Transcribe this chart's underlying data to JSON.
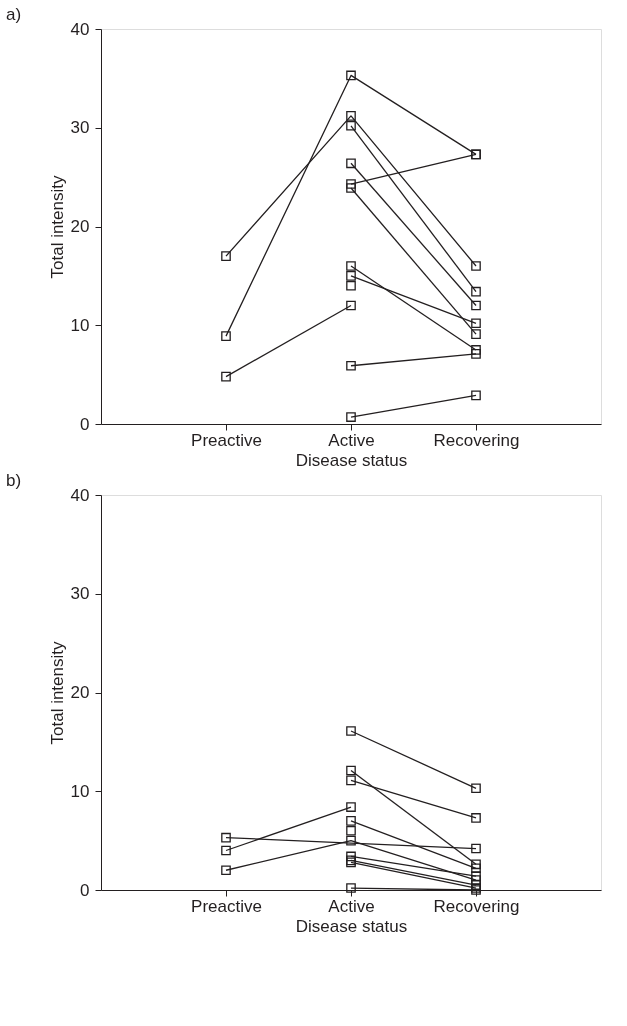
{
  "chart_data": [
    {
      "type": "line",
      "title": "a)",
      "xlabel": "Disease status",
      "ylabel": "Total intensity",
      "categories": [
        "Preactive",
        "Active",
        "Recovering"
      ],
      "ylim": [
        0,
        40
      ],
      "yticks": [
        0,
        10,
        20,
        30,
        40
      ],
      "grid": false,
      "legend": false,
      "marker": "square",
      "line_style": "solid",
      "series": [
        {
          "color": "#231f20",
          "values": [
            17.0,
            31.2,
            16.0
          ]
        },
        {
          "color": "#231f20",
          "values": [
            8.9,
            35.3,
            27.3
          ]
        },
        {
          "color": "#231f20",
          "values": [
            4.8,
            12.0,
            null
          ]
        },
        {
          "color": "#231f20",
          "values": [
            null,
            30.2,
            13.4
          ]
        },
        {
          "color": "#231f20",
          "values": [
            null,
            26.4,
            12.0
          ]
        },
        {
          "color": "#231f20",
          "values": [
            null,
            24.3,
            27.3
          ]
        },
        {
          "color": "#231f20",
          "values": [
            null,
            23.9,
            9.1
          ]
        },
        {
          "color": "#231f20",
          "values": [
            null,
            16.0,
            7.5
          ]
        },
        {
          "color": "#231f20",
          "values": [
            null,
            15.0,
            10.2
          ]
        },
        {
          "color": "#231f20",
          "values": [
            null,
            14.0,
            null
          ]
        },
        {
          "color": "#231f20",
          "values": [
            null,
            5.9,
            7.1
          ]
        },
        {
          "color": "#231f20",
          "values": [
            null,
            0.7,
            2.9
          ]
        }
      ]
    },
    {
      "type": "line",
      "title": "b)",
      "xlabel": "Disease status",
      "ylabel": "Total intensity",
      "categories": [
        "Preactive",
        "Active",
        "Recovering"
      ],
      "ylim": [
        0,
        40
      ],
      "yticks": [
        0,
        10,
        20,
        30,
        40
      ],
      "grid": false,
      "legend": false,
      "marker": "square",
      "line_style": "solid",
      "series": [
        {
          "color": "#231f20",
          "values": [
            null,
            16.1,
            10.3
          ]
        },
        {
          "color": "#231f20",
          "values": [
            null,
            12.1,
            2.6
          ]
        },
        {
          "color": "#231f20",
          "values": [
            null,
            11.1,
            7.3
          ]
        },
        {
          "color": "#231f20",
          "values": [
            4.0,
            8.4,
            null
          ]
        },
        {
          "color": "#231f20",
          "values": [
            5.3,
            null,
            4.2
          ]
        },
        {
          "color": "#231f20",
          "values": [
            null,
            7.0,
            2.2
          ]
        },
        {
          "color": "#231f20",
          "values": [
            null,
            6.0,
            null
          ]
        },
        {
          "color": "#231f20",
          "values": [
            2.0,
            5.0,
            1.0
          ]
        },
        {
          "color": "#231f20",
          "values": [
            null,
            3.4,
            1.4
          ]
        },
        {
          "color": "#231f20",
          "values": [
            null,
            3.0,
            0.5
          ]
        },
        {
          "color": "#231f20",
          "values": [
            null,
            2.8,
            0.2
          ]
        },
        {
          "color": "#231f20",
          "values": [
            null,
            0.2,
            0.0
          ]
        }
      ]
    }
  ]
}
